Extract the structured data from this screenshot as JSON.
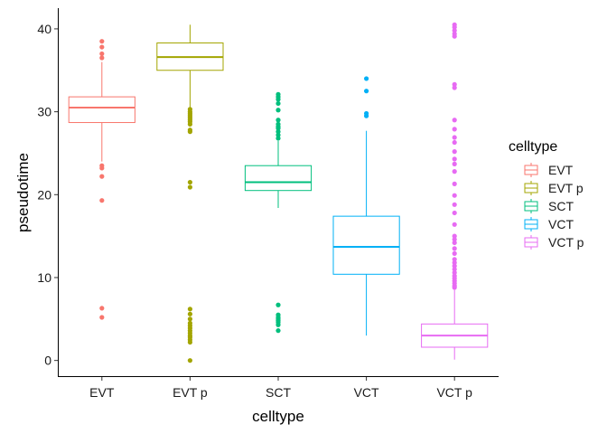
{
  "chart_data": {
    "type": "boxplot",
    "title": "",
    "xlabel": "celltype",
    "ylabel": "pseudotime",
    "ylim": [
      -2,
      42.5
    ],
    "yticks": [
      0,
      10,
      20,
      30,
      40
    ],
    "grid": false,
    "legend": {
      "title": "celltype",
      "placement": "right",
      "entries": [
        "EVT",
        "EVT p",
        "SCT",
        "VCT",
        "VCT p"
      ]
    },
    "categories": [
      "EVT",
      "EVT p",
      "SCT",
      "VCT",
      "VCT p"
    ],
    "series": [
      {
        "name": "EVT",
        "color": "#F8766D",
        "q1": 28.7,
        "median": 30.5,
        "q3": 31.8,
        "whisker_low": 24.0,
        "whisker_high": 36.0,
        "outliers": [
          38.5,
          37.8,
          37.0,
          36.5,
          23.5,
          23.2,
          22.2,
          19.3,
          6.3,
          5.2
        ]
      },
      {
        "name": "EVT p",
        "color": "#A3A500",
        "q1": 35.0,
        "median": 36.6,
        "q3": 38.3,
        "whisker_low": 30.2,
        "whisker_high": 40.5,
        "outliers": [
          30.3,
          30.0,
          29.8,
          29.6,
          29.4,
          29.2,
          29.0,
          28.8,
          28.5,
          27.8,
          27.6,
          21.5,
          20.9,
          6.2,
          5.6,
          5.0,
          4.5,
          4.2,
          3.9,
          3.6,
          3.3,
          3.0,
          2.8,
          2.5,
          2.2,
          0.0
        ]
      },
      {
        "name": "SCT",
        "color": "#00BF7D",
        "q1": 20.5,
        "median": 21.5,
        "q3": 23.5,
        "whisker_low": 18.4,
        "whisker_high": 26.5,
        "outliers": [
          32.1,
          31.8,
          31.5,
          31.0,
          30.2,
          29.0,
          28.5,
          28.2,
          28.0,
          27.6,
          27.2,
          26.8,
          6.7,
          5.5,
          5.2,
          5.0,
          4.8,
          4.6,
          4.3,
          3.6
        ]
      },
      {
        "name": "VCT",
        "color": "#00B0F6",
        "q1": 10.4,
        "median": 13.7,
        "q3": 17.4,
        "whisker_low": 3.0,
        "whisker_high": 27.7,
        "outliers": [
          34.0,
          32.5,
          29.8,
          29.5
        ]
      },
      {
        "name": "VCT p",
        "color": "#E76BF3",
        "q1": 1.6,
        "median": 3.0,
        "q3": 4.4,
        "whisker_low": 0.1,
        "whisker_high": 8.5,
        "outliers": [
          40.5,
          40.2,
          39.8,
          39.4,
          39.1,
          33.3,
          32.9,
          29.0,
          27.9,
          26.9,
          26.3,
          25.2,
          24.3,
          23.7,
          22.8,
          21.3,
          19.9,
          18.8,
          17.8,
          16.4,
          15.0,
          14.6,
          14.2,
          13.5,
          12.9,
          12.2,
          11.8,
          11.4,
          11.0,
          10.6,
          10.2,
          9.9,
          9.6,
          9.3,
          9.0,
          8.8
        ]
      }
    ]
  }
}
